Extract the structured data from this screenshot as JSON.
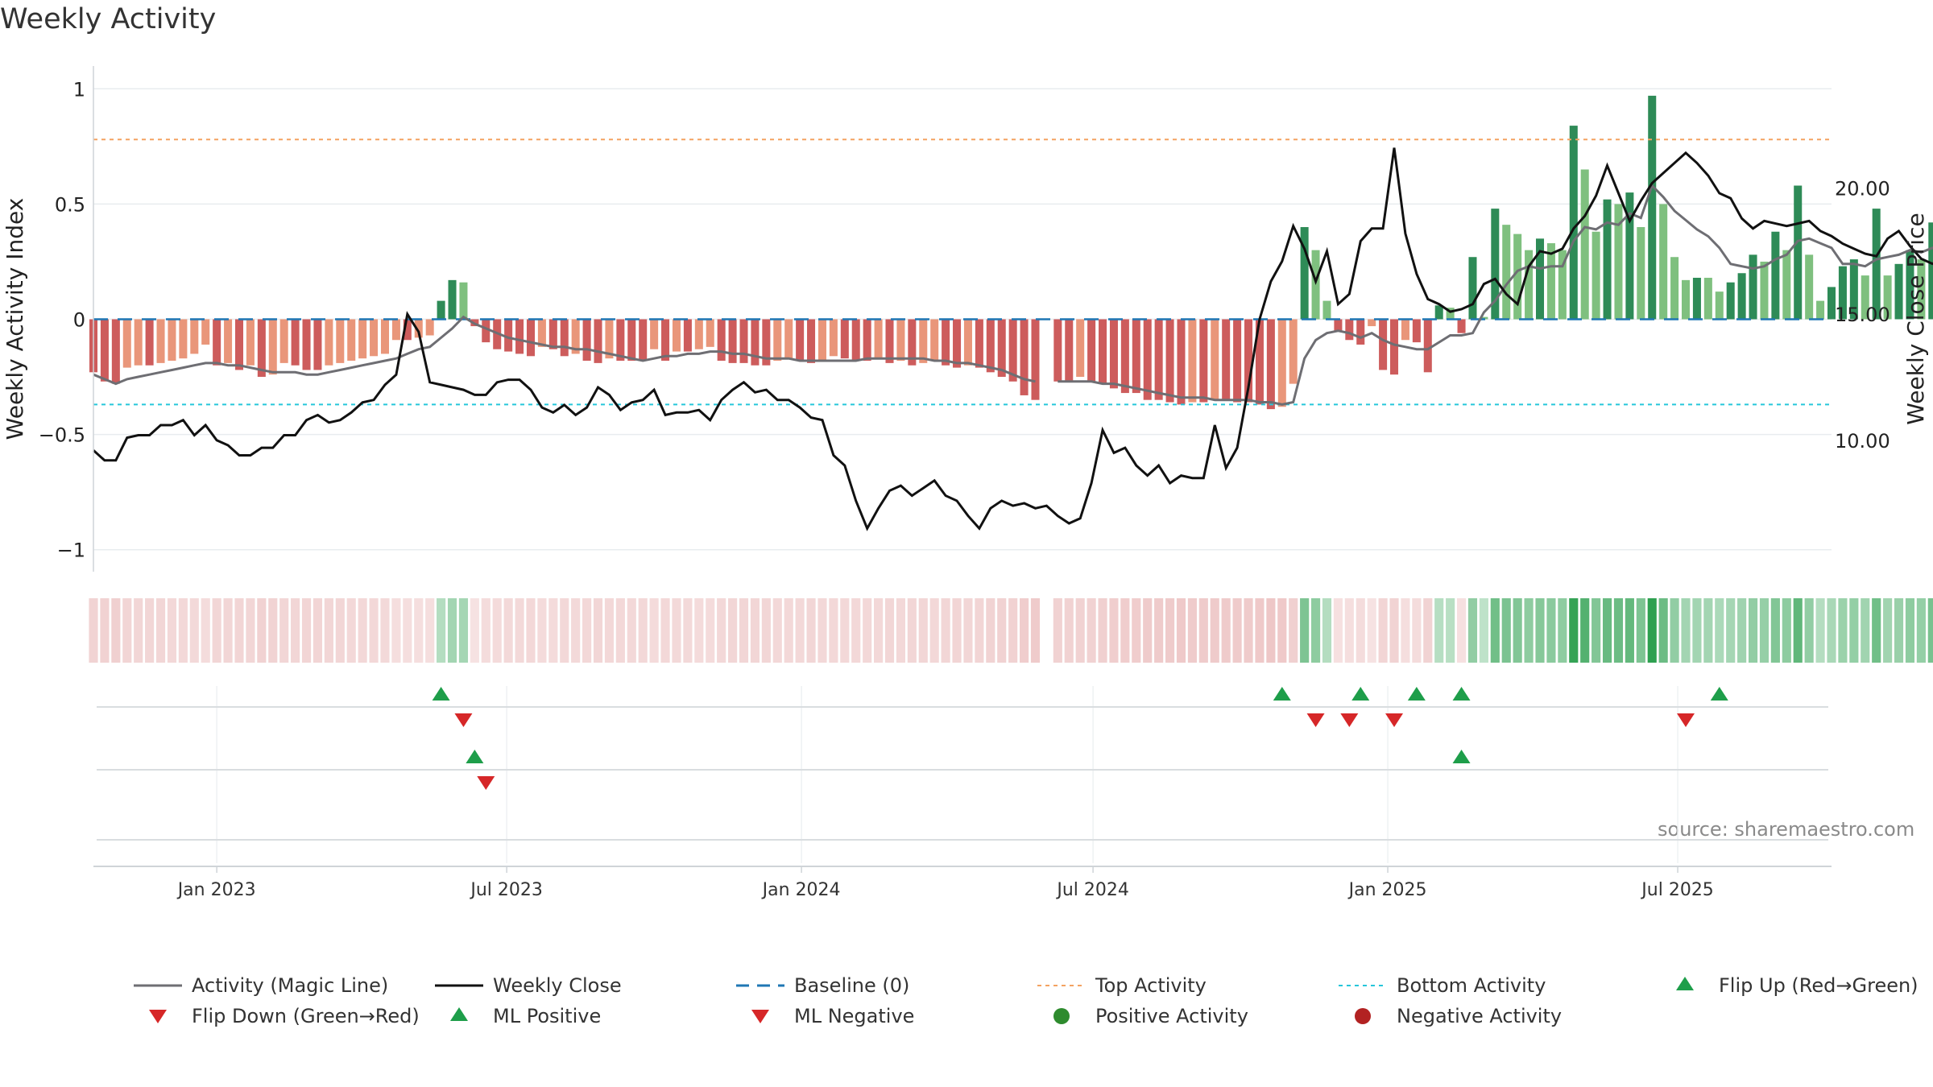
{
  "chart_data": {
    "type": "bar",
    "title": "Weekly Activity",
    "source": "source: sharemaestro.com",
    "y_left": {
      "label": "Weekly Activity Index",
      "lim": [
        -1.05,
        1.05
      ],
      "ticks": [
        {
          "v": 1,
          "label": "1"
        },
        {
          "v": 0.5,
          "label": "0.5"
        },
        {
          "v": 0,
          "label": "0"
        },
        {
          "v": -0.5,
          "label": "−0.5"
        },
        {
          "v": -1,
          "label": "−1"
        }
      ]
    },
    "y_right": {
      "label": "Weekly Close Price",
      "lim": [
        5.2,
        24.4
      ],
      "ticks": [
        {
          "v": 20,
          "label": "20.00"
        },
        {
          "v": 15,
          "label": "15.00"
        },
        {
          "v": 10,
          "label": "10.00"
        }
      ]
    },
    "x_ticks": [
      {
        "date": "2023-01-01",
        "label": "Jan 2023"
      },
      {
        "date": "2023-07-01",
        "label": "Jul 2023"
      },
      {
        "date": "2024-01-01",
        "label": "Jan 2024"
      },
      {
        "date": "2024-07-01",
        "label": "Jul 2024"
      },
      {
        "date": "2025-01-01",
        "label": "Jan 2025"
      },
      {
        "date": "2025-07-01",
        "label": "Jul 2025"
      }
    ],
    "x_range": [
      "2022-10-16",
      "2025-10-05"
    ],
    "first_week": "2022-10-16",
    "top_activity": 0.78,
    "bottom_activity": -0.37,
    "colors": {
      "pos_strong": "#2e8b57",
      "pos_light": "#7fc07f",
      "neg_strong": "#cd5c5c",
      "neg_light": "#e9967a",
      "magic_line": "#6e6e73",
      "close_line": "#111111",
      "baseline": "#1f77b4",
      "top": "#f4a261",
      "bottom": "#26c6da",
      "flip_up": "#1e9e4a",
      "flip_down": "#d62728",
      "pos_dot": "#2e8b2e",
      "neg_dot": "#b22222"
    },
    "series": [
      {
        "name": "Weekly Activity Index",
        "values": [
          -0.23,
          -0.27,
          -0.28,
          -0.21,
          -0.2,
          -0.2,
          -0.19,
          -0.18,
          -0.17,
          -0.15,
          -0.11,
          -0.2,
          -0.19,
          -0.22,
          -0.2,
          -0.25,
          -0.24,
          -0.19,
          -0.2,
          -0.22,
          -0.22,
          -0.2,
          -0.19,
          -0.18,
          -0.17,
          -0.16,
          -0.15,
          -0.09,
          -0.09,
          -0.08,
          -0.07,
          0.08,
          0.17,
          0.16,
          -0.03,
          -0.1,
          -0.13,
          -0.14,
          -0.15,
          -0.16,
          -0.12,
          -0.13,
          -0.16,
          -0.15,
          -0.18,
          -0.19,
          -0.17,
          -0.18,
          -0.18,
          -0.18,
          -0.13,
          -0.18,
          -0.14,
          -0.14,
          -0.13,
          -0.12,
          -0.18,
          -0.19,
          -0.19,
          -0.2,
          -0.2,
          -0.18,
          -0.17,
          -0.18,
          -0.19,
          -0.18,
          -0.16,
          -0.17,
          -0.18,
          -0.18,
          -0.17,
          -0.19,
          -0.18,
          -0.2,
          -0.19,
          -0.18,
          -0.2,
          -0.21,
          -0.2,
          -0.21,
          -0.23,
          -0.25,
          -0.27,
          -0.33,
          -0.35,
          null,
          -0.27,
          -0.27,
          -0.25,
          -0.27,
          -0.28,
          -0.3,
          -0.32,
          -0.32,
          -0.35,
          -0.35,
          -0.36,
          -0.37,
          -0.36,
          -0.36,
          -0.35,
          -0.35,
          -0.36,
          -0.36,
          -0.37,
          -0.39,
          -0.38,
          -0.28,
          0.4,
          0.3,
          0.08,
          -0.05,
          -0.09,
          -0.11,
          -0.03,
          -0.22,
          -0.24,
          -0.09,
          -0.1,
          -0.23,
          0.06,
          0.05,
          -0.06,
          0.27,
          0.01,
          0.48,
          0.41,
          0.37,
          0.3,
          0.35,
          0.33,
          0.3,
          0.84,
          0.65,
          0.38,
          0.52,
          0.5,
          0.55,
          0.4,
          0.97,
          0.5,
          0.27,
          0.17,
          0.18,
          0.18,
          0.12,
          0.16,
          0.2,
          0.28,
          0.25,
          0.38,
          0.3,
          0.58,
          0.28,
          0.08,
          0.14,
          0.23,
          0.26,
          0.19,
          0.48,
          0.19,
          0.24,
          0.3,
          0.26,
          0.42,
          0.2,
          0.48,
          0.51,
          0.52,
          0.5,
          0.78,
          0.87,
          0.65,
          0.53,
          0.43,
          0.38,
          0.34,
          0.3,
          0.27,
          0.43,
          0.31,
          0.45,
          0.32,
          0.16,
          0.15
        ]
      },
      {
        "name": "Activity (Magic Line)",
        "values": [
          -0.24,
          -0.26,
          -0.28,
          -0.26,
          -0.25,
          -0.24,
          -0.23,
          -0.22,
          -0.21,
          -0.2,
          -0.19,
          -0.19,
          -0.2,
          -0.2,
          -0.21,
          -0.22,
          -0.23,
          -0.23,
          -0.23,
          -0.24,
          -0.24,
          -0.23,
          -0.22,
          -0.21,
          -0.2,
          -0.19,
          -0.18,
          -0.17,
          -0.15,
          -0.13,
          -0.12,
          -0.08,
          -0.04,
          0.01,
          -0.02,
          -0.04,
          -0.06,
          -0.08,
          -0.09,
          -0.1,
          -0.11,
          -0.12,
          -0.12,
          -0.13,
          -0.13,
          -0.14,
          -0.15,
          -0.16,
          -0.17,
          -0.18,
          -0.17,
          -0.16,
          -0.16,
          -0.15,
          -0.15,
          -0.14,
          -0.14,
          -0.15,
          -0.15,
          -0.16,
          -0.17,
          -0.17,
          -0.17,
          -0.18,
          -0.18,
          -0.18,
          -0.18,
          -0.18,
          -0.18,
          -0.17,
          -0.17,
          -0.17,
          -0.17,
          -0.17,
          -0.17,
          -0.18,
          -0.18,
          -0.19,
          -0.19,
          -0.2,
          -0.21,
          -0.22,
          -0.24,
          -0.26,
          -0.27,
          null,
          -0.27,
          -0.27,
          -0.27,
          -0.27,
          -0.28,
          -0.28,
          -0.29,
          -0.3,
          -0.31,
          -0.32,
          -0.33,
          -0.34,
          -0.34,
          -0.34,
          -0.35,
          -0.35,
          -0.35,
          -0.35,
          -0.36,
          -0.36,
          -0.37,
          -0.36,
          -0.17,
          -0.09,
          -0.06,
          -0.05,
          -0.06,
          -0.08,
          -0.06,
          -0.09,
          -0.11,
          -0.12,
          -0.13,
          -0.13,
          -0.1,
          -0.07,
          -0.07,
          -0.06,
          0.03,
          0.08,
          0.15,
          0.21,
          0.23,
          0.22,
          0.23,
          0.23,
          0.34,
          0.4,
          0.39,
          0.42,
          0.41,
          0.46,
          0.44,
          0.58,
          0.53,
          0.47,
          0.43,
          0.39,
          0.36,
          0.31,
          0.24,
          0.23,
          0.22,
          0.23,
          0.26,
          0.28,
          0.34,
          0.35,
          0.33,
          0.31,
          0.24,
          0.24,
          0.23,
          0.26,
          0.27,
          0.28,
          0.3,
          0.29,
          0.31,
          0.29,
          0.32,
          0.35,
          0.38,
          0.4,
          0.47,
          0.58,
          0.58,
          0.56,
          0.53,
          0.49,
          0.45,
          0.41,
          0.41,
          0.4,
          0.4,
          0.41,
          0.37,
          0.33,
          0.29
        ]
      },
      {
        "name": "Weekly Close",
        "values": [
          9.6,
          9.2,
          9.2,
          10.1,
          10.2,
          10.2,
          10.6,
          10.6,
          10.8,
          10.2,
          10.6,
          10.0,
          9.8,
          9.4,
          9.4,
          9.7,
          9.7,
          10.2,
          10.2,
          10.8,
          11.0,
          10.7,
          10.8,
          11.1,
          11.5,
          11.6,
          12.2,
          12.6,
          15.0,
          14.3,
          12.3,
          12.2,
          12.1,
          12.0,
          11.8,
          11.8,
          12.3,
          12.4,
          12.4,
          12.0,
          11.3,
          11.1,
          11.4,
          11.0,
          11.3,
          12.1,
          11.8,
          11.2,
          11.5,
          11.6,
          12.0,
          11.0,
          11.1,
          11.1,
          11.2,
          10.8,
          11.6,
          12.0,
          12.3,
          11.9,
          12.0,
          11.6,
          11.6,
          11.3,
          10.9,
          10.8,
          9.4,
          9.0,
          7.6,
          6.5,
          7.3,
          8.0,
          8.2,
          7.8,
          8.1,
          8.4,
          7.8,
          7.6,
          7.0,
          6.5,
          7.3,
          7.6,
          7.4,
          7.5,
          7.3,
          7.4,
          7.0,
          6.7,
          6.9,
          8.3,
          10.4,
          9.5,
          9.7,
          9.0,
          8.6,
          9.0,
          8.3,
          8.6,
          8.5,
          8.5,
          10.6,
          8.9,
          9.7,
          12.1,
          14.8,
          16.3,
          17.1,
          18.5,
          17.6,
          16.3,
          17.5,
          15.4,
          15.8,
          17.9,
          18.4,
          18.4,
          21.6,
          18.2,
          16.6,
          15.6,
          15.4,
          15.1,
          15.2,
          15.4,
          16.2,
          16.4,
          15.8,
          15.4,
          16.9,
          17.5,
          17.4,
          17.6,
          18.4,
          18.9,
          19.7,
          20.9,
          19.8,
          18.7,
          19.5,
          20.2,
          20.6,
          21.0,
          21.4,
          21.0,
          20.5,
          19.8,
          19.6,
          18.8,
          18.4,
          18.7,
          18.6,
          18.5,
          18.6,
          18.7,
          18.3,
          18.1,
          17.8,
          17.6,
          17.4,
          17.3,
          18.0,
          18.3,
          17.7,
          17.2,
          17.0,
          17.2,
          18.4,
          19.2,
          20.0,
          20.8,
          21.2,
          20.9,
          20.0,
          19.6,
          18.6,
          18.9,
          19.2,
          19.7,
          20.0,
          19.8,
          19.4,
          19.7,
          18.6,
          18.5,
          18.6,
          18.4,
          18.5,
          18.3
        ]
      },
      {
        "name": "Weekly Close (adjusted for chart)",
        "values": []
      }
    ],
    "flip_up_weeks": [
      31,
      106,
      113,
      118,
      122,
      145
    ],
    "flip_down_weeks": [
      33,
      109,
      112,
      116,
      142
    ],
    "ml_positive_weeks": [
      34,
      122
    ],
    "ml_negative_weeks": [
      35
    ],
    "legend": [
      {
        "key": "magic",
        "label": "Activity (Magic Line)"
      },
      {
        "key": "close",
        "label": "Weekly Close"
      },
      {
        "key": "baseline",
        "label": "Baseline (0)"
      },
      {
        "key": "top",
        "label": "Top Activity"
      },
      {
        "key": "bottom",
        "label": "Bottom Activity"
      },
      {
        "key": "flipup",
        "label": "Flip Up (Red→Green)"
      },
      {
        "key": "flipdown",
        "label": "Flip Down (Green→Red)"
      },
      {
        "key": "mlpos",
        "label": "ML Positive"
      },
      {
        "key": "mlneg",
        "label": "ML Negative"
      },
      {
        "key": "posdot",
        "label": "Positive Activity"
      },
      {
        "key": "negdot",
        "label": "Negative Activity"
      }
    ]
  }
}
